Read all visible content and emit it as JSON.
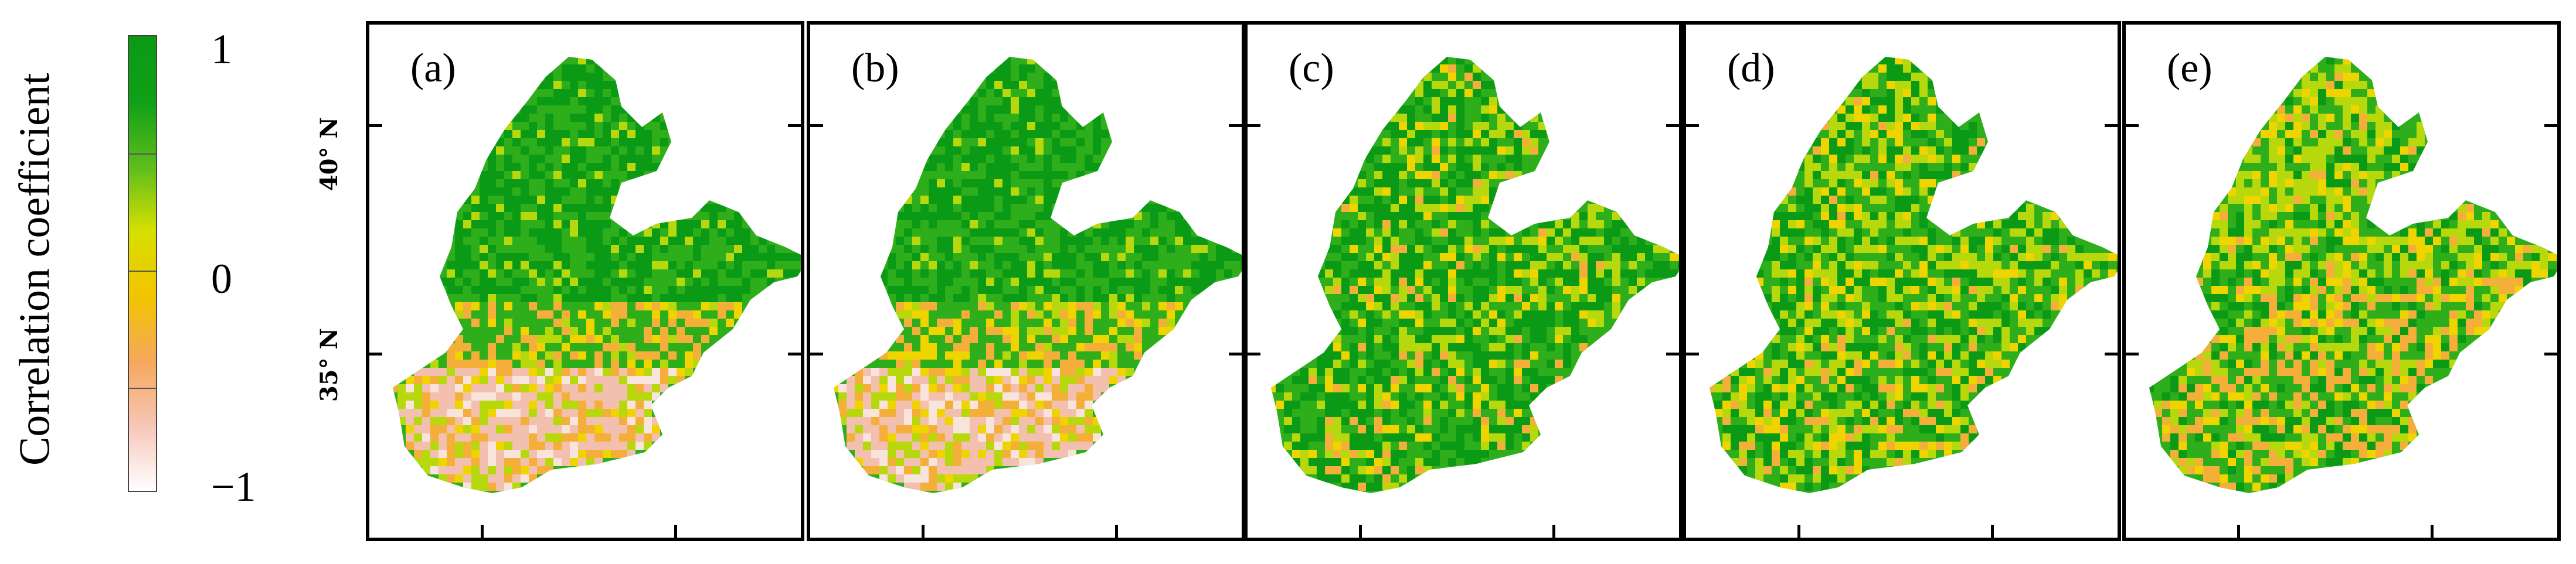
{
  "colorbar": {
    "title": "Correlation coefficient",
    "ticks": [
      {
        "value": "1"
      },
      {
        "value": "0"
      },
      {
        "value": "−1"
      }
    ],
    "colors": [
      "#ffffff",
      "#f7c6b8",
      "#f5a85a",
      "#f2c400",
      "#d6e000",
      "#5cbd1c",
      "#0fa017",
      "#0a9a14"
    ]
  },
  "latitude_labels": [
    "40° N",
    "35° N"
  ],
  "panels": [
    {
      "label": "(a)",
      "variant": 0
    },
    {
      "label": "(b)",
      "variant": 1
    },
    {
      "label": "(c)",
      "variant": 2
    },
    {
      "label": "(d)",
      "variant": 3
    },
    {
      "label": "(e)",
      "variant": 4
    }
  ],
  "palette": {
    "green_dark": "#0b9a15",
    "green": "#2fae1c",
    "yellow_green": "#b7d80c",
    "yellow": "#efd400",
    "orange": "#f4ae3a",
    "pink": "#f3bfae",
    "pale": "#f8e4dc"
  }
}
